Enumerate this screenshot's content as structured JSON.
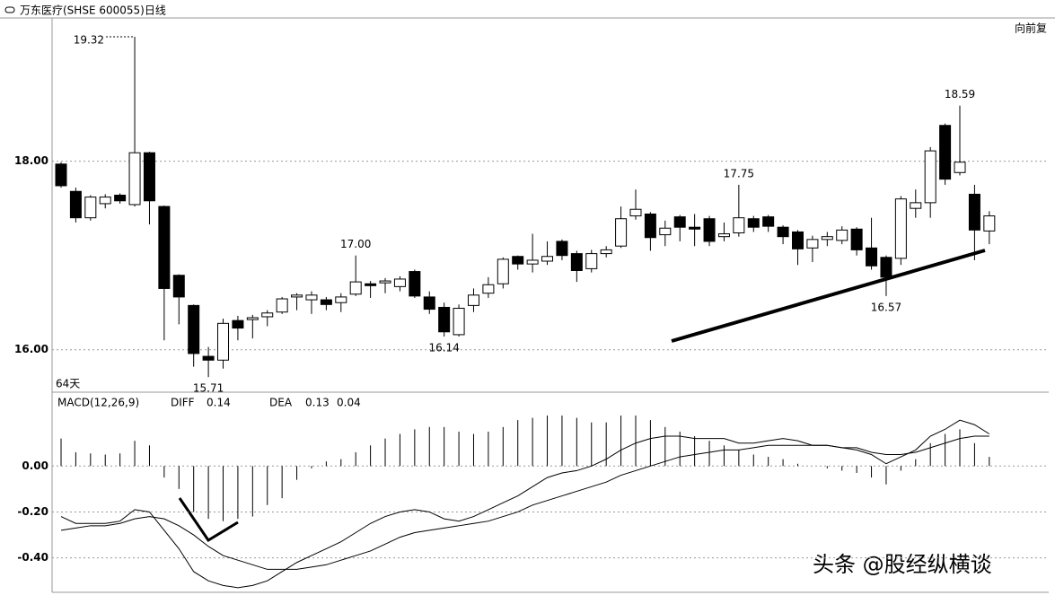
{
  "window_title": "万东医疗(SHSE 600055)日线",
  "adjust_label": "向前复",
  "period_label": "64天",
  "watermark": "头条 @股经纵横谈",
  "chart_data": [
    {
      "type": "candlestick",
      "up_color": "#ffffff",
      "down_color": "#000000",
      "stroke": "#000000",
      "ylim": [
        15.55,
        19.52
      ],
      "yticks": [
        {
          "value": 16,
          "label": "16.00"
        },
        {
          "value": 18,
          "label": "18.00"
        }
      ],
      "grid": true,
      "open": [
        17.97,
        17.68,
        17.4,
        17.55,
        17.64,
        17.54,
        18.09,
        17.52,
        16.79,
        16.47,
        15.93,
        15.89,
        16.31,
        16.32,
        16.35,
        16.4,
        16.56,
        16.53,
        16.53,
        16.5,
        16.59,
        16.7,
        16.71,
        16.67,
        16.83,
        16.56,
        16.45,
        16.16,
        16.47,
        16.6,
        16.7,
        16.99,
        16.91,
        16.94,
        17.15,
        17.02,
        16.86,
        17.02,
        17.1,
        17.42,
        17.44,
        17.22,
        17.41,
        17.3,
        17.39,
        17.2,
        17.24,
        17.39,
        17.41,
        17.3,
        17.25,
        17.08,
        17.17,
        17.16,
        17.28,
        17.08,
        16.98,
        16.97,
        17.5,
        17.56,
        18.38,
        17.88,
        17.65,
        17.26
      ],
      "high": [
        17.99,
        17.72,
        17.64,
        17.65,
        17.66,
        19.32,
        18.1,
        17.53,
        16.8,
        16.48,
        16.03,
        16.33,
        16.36,
        16.37,
        16.42,
        16.56,
        16.6,
        16.62,
        16.56,
        16.6,
        17.0,
        16.73,
        16.76,
        16.78,
        16.85,
        16.62,
        16.5,
        16.48,
        16.65,
        16.77,
        16.98,
        17.0,
        17.23,
        17.15,
        17.17,
        17.05,
        17.06,
        17.1,
        17.52,
        17.7,
        17.46,
        17.37,
        17.43,
        17.44,
        17.42,
        17.35,
        17.75,
        17.42,
        17.43,
        17.32,
        17.27,
        17.21,
        17.25,
        17.31,
        17.3,
        17.4,
        17.0,
        17.63,
        17.7,
        18.15,
        18.4,
        18.59,
        17.75,
        17.47
      ],
      "low": [
        17.72,
        17.35,
        17.37,
        17.5,
        17.55,
        17.52,
        17.33,
        16.1,
        16.27,
        15.82,
        15.71,
        15.8,
        16.1,
        16.12,
        16.25,
        16.38,
        16.42,
        16.38,
        16.42,
        16.4,
        16.57,
        16.55,
        16.6,
        16.62,
        16.55,
        16.38,
        16.14,
        16.14,
        16.4,
        16.55,
        16.65,
        16.85,
        16.82,
        16.9,
        16.95,
        16.72,
        16.82,
        16.98,
        17.08,
        17.38,
        17.05,
        17.1,
        17.15,
        17.1,
        17.1,
        17.15,
        17.2,
        17.25,
        17.25,
        17.12,
        16.9,
        16.93,
        17.1,
        17.12,
        17.0,
        16.85,
        16.57,
        16.9,
        17.4,
        17.4,
        17.75,
        17.85,
        16.95,
        17.12
      ],
      "close": [
        17.74,
        17.4,
        17.62,
        17.62,
        17.58,
        18.09,
        17.58,
        16.65,
        16.56,
        15.96,
        15.89,
        16.28,
        16.23,
        16.34,
        16.39,
        16.54,
        16.58,
        16.58,
        16.48,
        16.56,
        16.72,
        16.68,
        16.73,
        16.75,
        16.57,
        16.43,
        16.19,
        16.44,
        16.58,
        16.69,
        16.96,
        16.91,
        16.95,
        16.99,
        17.0,
        16.84,
        17.02,
        17.06,
        17.39,
        17.49,
        17.19,
        17.29,
        17.3,
        17.28,
        17.15,
        17.23,
        17.4,
        17.3,
        17.31,
        17.2,
        17.07,
        17.17,
        17.2,
        17.27,
        17.06,
        16.89,
        16.77,
        17.6,
        17.56,
        18.11,
        17.81,
        17.99,
        17.27,
        17.42
      ],
      "high_labels": [
        null,
        null,
        null,
        null,
        null,
        "19.32",
        null,
        null,
        null,
        null,
        null,
        null,
        null,
        null,
        null,
        null,
        null,
        null,
        null,
        null,
        "17.00",
        null,
        null,
        null,
        null,
        null,
        null,
        null,
        null,
        null,
        null,
        null,
        null,
        null,
        null,
        null,
        null,
        null,
        null,
        null,
        null,
        null,
        null,
        null,
        null,
        null,
        "17.75",
        null,
        null,
        null,
        null,
        null,
        null,
        null,
        null,
        null,
        null,
        null,
        null,
        null,
        null,
        "18.59",
        null,
        null
      ],
      "low_labels": [
        null,
        null,
        null,
        null,
        null,
        null,
        null,
        null,
        null,
        null,
        "15.71",
        null,
        null,
        null,
        null,
        null,
        null,
        null,
        null,
        null,
        null,
        null,
        null,
        null,
        null,
        null,
        "16.14",
        null,
        null,
        null,
        null,
        null,
        null,
        null,
        null,
        null,
        null,
        null,
        null,
        null,
        null,
        null,
        null,
        null,
        null,
        null,
        null,
        null,
        null,
        null,
        null,
        null,
        null,
        null,
        null,
        null,
        "16.57",
        null,
        null,
        null,
        null,
        null,
        null,
        null
      ]
    },
    {
      "type": "macd",
      "title": "MACD(12,26,9)",
      "color": "#000000",
      "ylim": [
        -0.55,
        0.31
      ],
      "yticks": [
        {
          "value": -0.4,
          "label": "-0.40"
        },
        {
          "value": -0.2,
          "label": "-0.20"
        },
        {
          "value": 0,
          "label": "0.00"
        }
      ],
      "grid": true,
      "series": [
        {
          "name": "DIFF",
          "current": 0.14,
          "values": [
            -0.22,
            -0.25,
            -0.25,
            -0.25,
            -0.24,
            -0.19,
            -0.2,
            -0.28,
            -0.36,
            -0.46,
            -0.5,
            -0.52,
            -0.53,
            -0.52,
            -0.5,
            -0.46,
            -0.42,
            -0.39,
            -0.36,
            -0.33,
            -0.29,
            -0.25,
            -0.22,
            -0.2,
            -0.19,
            -0.2,
            -0.23,
            -0.24,
            -0.22,
            -0.19,
            -0.16,
            -0.13,
            -0.09,
            -0.05,
            -0.03,
            -0.02,
            0.0,
            0.03,
            0.07,
            0.1,
            0.12,
            0.13,
            0.13,
            0.12,
            0.12,
            0.12,
            0.1,
            0.1,
            0.11,
            0.12,
            0.11,
            0.09,
            0.09,
            0.08,
            0.07,
            0.05,
            0.01,
            0.04,
            0.07,
            0.13,
            0.16,
            0.2,
            0.18,
            0.14
          ]
        },
        {
          "name": "DEA",
          "current": 0.13,
          "values": [
            -0.28,
            -0.27,
            -0.26,
            -0.26,
            -0.25,
            -0.23,
            -0.22,
            -0.23,
            -0.26,
            -0.3,
            -0.35,
            -0.39,
            -0.41,
            -0.43,
            -0.45,
            -0.45,
            -0.45,
            -0.44,
            -0.43,
            -0.41,
            -0.39,
            -0.37,
            -0.34,
            -0.31,
            -0.29,
            -0.28,
            -0.27,
            -0.26,
            -0.25,
            -0.24,
            -0.22,
            -0.2,
            -0.17,
            -0.15,
            -0.13,
            -0.11,
            -0.09,
            -0.07,
            -0.04,
            -0.02,
            0.0,
            0.02,
            0.04,
            0.05,
            0.06,
            0.07,
            0.07,
            0.08,
            0.09,
            0.09,
            0.09,
            0.09,
            0.09,
            0.08,
            0.08,
            0.06,
            0.05,
            0.05,
            0.06,
            0.08,
            0.1,
            0.12,
            0.13,
            0.13
          ]
        }
      ],
      "histogram": {
        "current": 0.04,
        "values": [
          0.12,
          0.06,
          0.055,
          0.05,
          0.055,
          0.11,
          0.09,
          -0.05,
          -0.1,
          -0.2,
          -0.23,
          -0.24,
          -0.23,
          -0.22,
          -0.17,
          -0.14,
          -0.06,
          -0.01,
          0.02,
          0.03,
          0.06,
          0.09,
          0.12,
          0.14,
          0.16,
          0.17,
          0.17,
          0.15,
          0.14,
          0.15,
          0.17,
          0.2,
          0.21,
          0.22,
          0.22,
          0.21,
          0.19,
          0.19,
          0.22,
          0.22,
          0.2,
          0.17,
          0.15,
          0.13,
          0.11,
          0.09,
          0.07,
          0.05,
          0.04,
          0.03,
          0.01,
          0,
          -0.01,
          -0.02,
          -0.03,
          -0.05,
          -0.08,
          -0.02,
          0.03,
          0.1,
          0.14,
          0.16,
          0.1,
          0.04
        ]
      }
    }
  ]
}
